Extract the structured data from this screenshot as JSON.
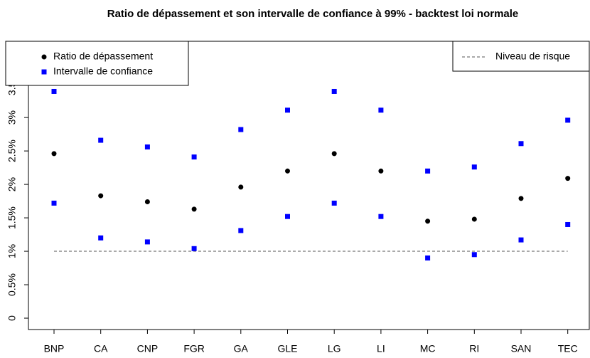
{
  "chart_data": {
    "type": "scatter",
    "title": "Ratio de dépassement et son intervalle de confiance à 99% - backtest loi normale",
    "categories": [
      "BNP",
      "CA",
      "CNP",
      "FGR",
      "GA",
      "GLE",
      "LG",
      "LI",
      "MC",
      "RI",
      "SAN",
      "TEC"
    ],
    "series": [
      {
        "name": "Ratio de dépassement",
        "color": "#000000",
        "marker": "circle",
        "values": [
          2.46,
          1.83,
          1.74,
          1.63,
          1.96,
          2.2,
          2.46,
          2.2,
          1.45,
          1.48,
          1.79,
          2.09
        ]
      },
      {
        "name": "Intervalle de confiance",
        "color": "#0000ff",
        "marker": "square",
        "lower": [
          1.72,
          1.2,
          1.14,
          1.04,
          1.31,
          1.52,
          1.72,
          1.52,
          0.9,
          0.95,
          1.17,
          1.4
        ],
        "upper": [
          3.39,
          2.66,
          2.56,
          2.41,
          2.82,
          3.11,
          3.39,
          3.11,
          2.2,
          2.26,
          2.61,
          2.96
        ]
      }
    ],
    "reference": {
      "name": "Niveau de risque",
      "value": 1,
      "color": "#555555"
    },
    "ylim": [
      -0.17,
      4.14
    ],
    "yticks": [
      0,
      {
        "value": 0.5,
        "label": "0.5%"
      },
      {
        "value": 1,
        "label": "1%"
      },
      {
        "value": 1.5,
        "label": "1.5%"
      },
      {
        "value": 2,
        "label": "2%"
      },
      {
        "value": 2.5,
        "label": "2.5%"
      },
      {
        "value": 3,
        "label": "3%"
      },
      {
        "value": 3.5,
        "label": "3.5%"
      }
    ],
    "legend": [
      "top-left",
      "top-right"
    ]
  }
}
